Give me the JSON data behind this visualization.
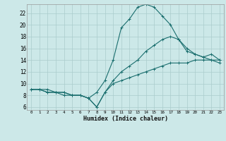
{
  "xlabel": "Humidex (Indice chaleur)",
  "bg_color": "#cce8e8",
  "grid_color": "#aacccc",
  "line_color": "#1a6e6e",
  "xlim": [
    -0.5,
    23.5
  ],
  "ylim": [
    5.5,
    23.5
  ],
  "xticks": [
    0,
    1,
    2,
    3,
    4,
    5,
    6,
    7,
    8,
    9,
    10,
    11,
    12,
    13,
    14,
    15,
    16,
    17,
    18,
    19,
    20,
    21,
    22,
    23
  ],
  "yticks": [
    6,
    8,
    10,
    12,
    14,
    16,
    18,
    20,
    22
  ],
  "line1_x": [
    0,
    1,
    2,
    3,
    4,
    5,
    6,
    7,
    8,
    9,
    10,
    11,
    12,
    13,
    14,
    15,
    16,
    17,
    18,
    19,
    20,
    21,
    22,
    23
  ],
  "line1_y": [
    9.0,
    9.0,
    9.0,
    8.5,
    8.0,
    8.0,
    8.0,
    7.5,
    8.5,
    10.5,
    14.0,
    19.5,
    21.0,
    23.0,
    23.5,
    23.0,
    21.5,
    20.0,
    17.5,
    15.5,
    15.0,
    14.5,
    14.0,
    13.5
  ],
  "line2_x": [
    0,
    1,
    2,
    3,
    4,
    5,
    6,
    7,
    8,
    9,
    10,
    11,
    12,
    13,
    14,
    15,
    16,
    17,
    18,
    19,
    20,
    21,
    22,
    23
  ],
  "line2_y": [
    9.0,
    9.0,
    8.5,
    8.5,
    8.5,
    8.0,
    8.0,
    7.5,
    6.0,
    8.5,
    10.5,
    12.0,
    13.0,
    14.0,
    15.5,
    16.5,
    17.5,
    18.0,
    17.5,
    16.0,
    15.0,
    14.5,
    15.0,
    14.0
  ],
  "line3_x": [
    0,
    1,
    2,
    3,
    4,
    5,
    6,
    7,
    8,
    9,
    10,
    11,
    12,
    13,
    14,
    15,
    16,
    17,
    18,
    19,
    20,
    21,
    22,
    23
  ],
  "line3_y": [
    9.0,
    9.0,
    8.5,
    8.5,
    8.5,
    8.0,
    8.0,
    7.5,
    6.0,
    8.5,
    10.0,
    10.5,
    11.0,
    11.5,
    12.0,
    12.5,
    13.0,
    13.5,
    13.5,
    13.5,
    14.0,
    14.0,
    14.0,
    14.0
  ]
}
